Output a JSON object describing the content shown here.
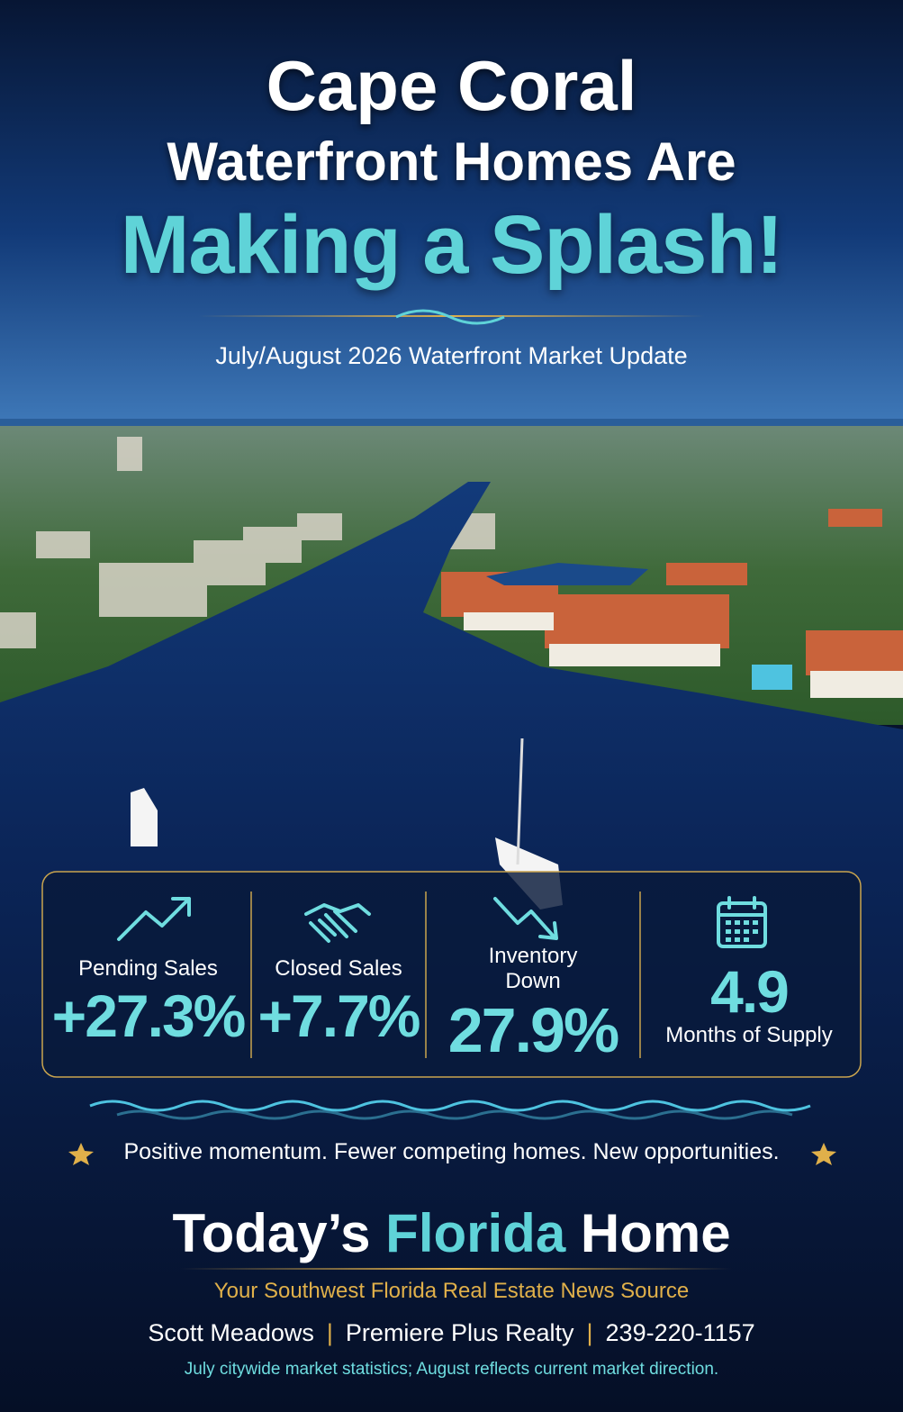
{
  "header": {
    "title_line1": "Cape Coral",
    "title_line2": "Waterfront Homes Are",
    "title_line3": "Making a Splash!",
    "subtitle": "July/August 2026 Waterfront Market Update"
  },
  "stats": [
    {
      "label": "Pending Sales",
      "value": "+27.3%"
    },
    {
      "label": "Closed Sales",
      "value": "+7.7%"
    },
    {
      "label": "Inventory Down",
      "value": "27.9%"
    },
    {
      "value": "4.9",
      "label": "Months of Supply"
    }
  ],
  "tagline": "Positive momentum. Fewer competing homes. New opportunities.",
  "brand": {
    "part1": "Today’s",
    "part2": "Florida",
    "part3": "Home",
    "slogan": "Your Southwest Florida Real Estate News Source"
  },
  "contact": {
    "name": "Scott Meadows",
    "company": "Premiere Plus Realty",
    "phone": "239-220-1157"
  },
  "footnote": "July citywide market statistics; August reflects current market direction."
}
